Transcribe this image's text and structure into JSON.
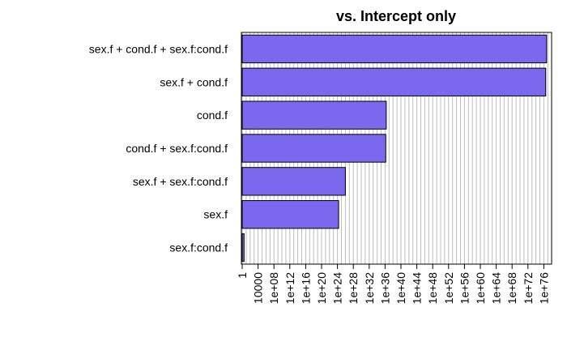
{
  "chart_data": {
    "type": "bar",
    "orientation": "horizontal",
    "title": "vs. Intercept only",
    "xlabel": "",
    "ylabel": "",
    "x_scale": "log10",
    "xlim": [
      1,
      1e+77
    ],
    "grid": true,
    "bar_color": "#7B68EE",
    "categories": [
      "sex.f + cond.f + sex.f:cond.f",
      "sex.f + cond.f",
      "cond.f",
      "cond.f + sex.f:cond.f",
      "sex.f + sex.f:cond.f",
      "sex.f",
      "sex.f:cond.f"
    ],
    "values": [
      5e+76,
      3e+76,
      2e+36,
      1.5e+36,
      1e+26,
      2e+24,
      3
    ],
    "xticks": [
      1,
      10000.0,
      100000000.0,
      1000000000000.0,
      1e+16,
      1e+20,
      1e+24,
      1e+28,
      1e+32,
      1e+36,
      1e+40,
      1e+44,
      1e+48,
      1e+52,
      1e+56,
      1e+60,
      1e+64,
      1e+68,
      1e+72,
      1e+76
    ],
    "xtick_labels": [
      "1",
      "10000",
      "1e+08",
      "1e+12",
      "1e+16",
      "1e+20",
      "1e+24",
      "1e+28",
      "1e+32",
      "1e+36",
      "1e+40",
      "1e+44",
      "1e+48",
      "1e+52",
      "1e+56",
      "1e+60",
      "1e+64",
      "1e+68",
      "1e+72",
      "1e+76"
    ]
  }
}
